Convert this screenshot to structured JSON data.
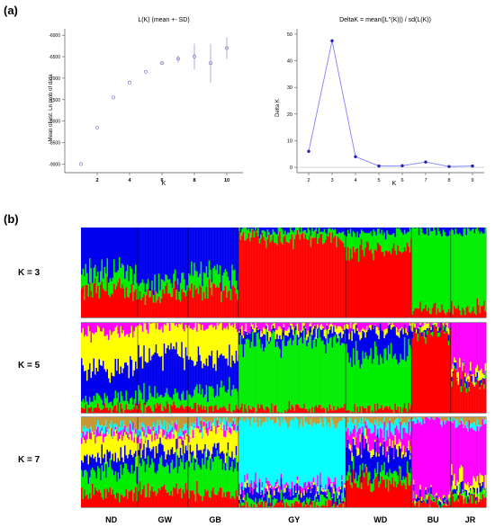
{
  "panels": {
    "a": "(a)",
    "b": "(b)"
  },
  "chart_data": [
    {
      "type": "scatter",
      "title": "L(K) (mean +- SD)",
      "xlabel": "K",
      "ylabel": "Mean of est. Ln prob of data",
      "x": [
        1,
        2,
        3,
        4,
        5,
        6,
        7,
        8,
        9,
        10
      ],
      "y": [
        -9000,
        -8150,
        -7450,
        -7100,
        -6850,
        -6650,
        -6550,
        -6500,
        -6650,
        -6300
      ],
      "sd": [
        0,
        0,
        0,
        0,
        0,
        20,
        80,
        300,
        450,
        250
      ],
      "xticks": [
        2,
        4,
        6,
        8,
        10
      ],
      "yticks": [
        -9000,
        -8500,
        -8000,
        -7500,
        -7000,
        -6500,
        -6000
      ],
      "xlim": [
        0,
        11
      ],
      "ylim": [
        -9200,
        -5850
      ]
    },
    {
      "type": "line",
      "title": "DeltaK = mean(|L''(K)|) / sd(L(K))",
      "xlabel": "K",
      "ylabel": "Delta K",
      "x": [
        2,
        3,
        4,
        5,
        6,
        7,
        8,
        9
      ],
      "y": [
        6,
        47.5,
        4,
        0.5,
        0.6,
        2,
        0.3,
        0.5
      ],
      "xticks": [
        2,
        3,
        4,
        5,
        6,
        7,
        8,
        9
      ],
      "yticks": [
        0,
        10,
        20,
        30,
        40,
        50
      ],
      "xlim": [
        1.5,
        9.5
      ],
      "ylim": [
        -2,
        52
      ],
      "color": "#7f7fff"
    },
    {
      "type": "bar",
      "title": "",
      "rows": [
        "K = 3",
        "K = 5",
        "K = 7"
      ],
      "populations": [
        "ND",
        "GW",
        "GB",
        "GY",
        "WD",
        "BU",
        "JR"
      ],
      "population_widths": [
        26,
        23,
        23,
        49,
        30,
        18,
        16
      ],
      "colors_k3": [
        "#ff0000",
        "#00ee00",
        "#0000ee"
      ],
      "colors_k5": [
        "#ff0000",
        "#00ee00",
        "#0000ee",
        "#ffff00",
        "#ff00ff"
      ],
      "colors_k7": [
        "#ff0000",
        "#00ee00",
        "#0000ee",
        "#ffff00",
        "#ff00ff",
        "#00ffff",
        "#c89632"
      ]
    }
  ]
}
